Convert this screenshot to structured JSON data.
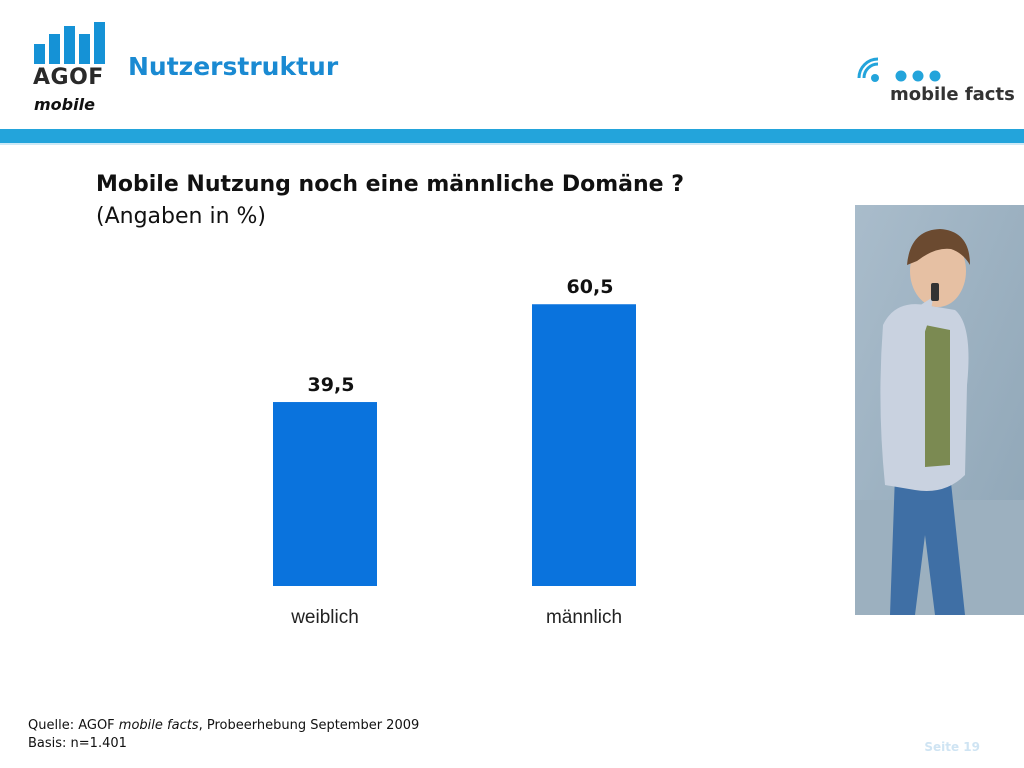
{
  "header": {
    "logo_word": "AGOF",
    "logo_sub": "mobile",
    "title": "Nutzerstruktur",
    "brand_logo_text": "mobile facts"
  },
  "headline": "Mobile Nutzung noch eine männliche Domäne ?",
  "subline": "(Angaben in %)",
  "chart_data": {
    "type": "bar",
    "categories": [
      "weiblich",
      "männlich"
    ],
    "values": [
      39.5,
      60.5
    ],
    "value_labels": [
      "39,5",
      "60,5"
    ],
    "ylim": [
      0,
      70
    ],
    "bar_color": "#0a73dd",
    "grid": false
  },
  "footer": {
    "source_prefix": "Quelle: AGOF ",
    "source_italic": "mobile facts",
    "source_suffix": ", Probeerhebung September 2009",
    "basis": "Basis: n=1.401"
  },
  "page_number": "Seite 19",
  "colors": {
    "accent": "#1a8ad2",
    "rule": "#23a4db",
    "bar": "#0a73dd"
  }
}
